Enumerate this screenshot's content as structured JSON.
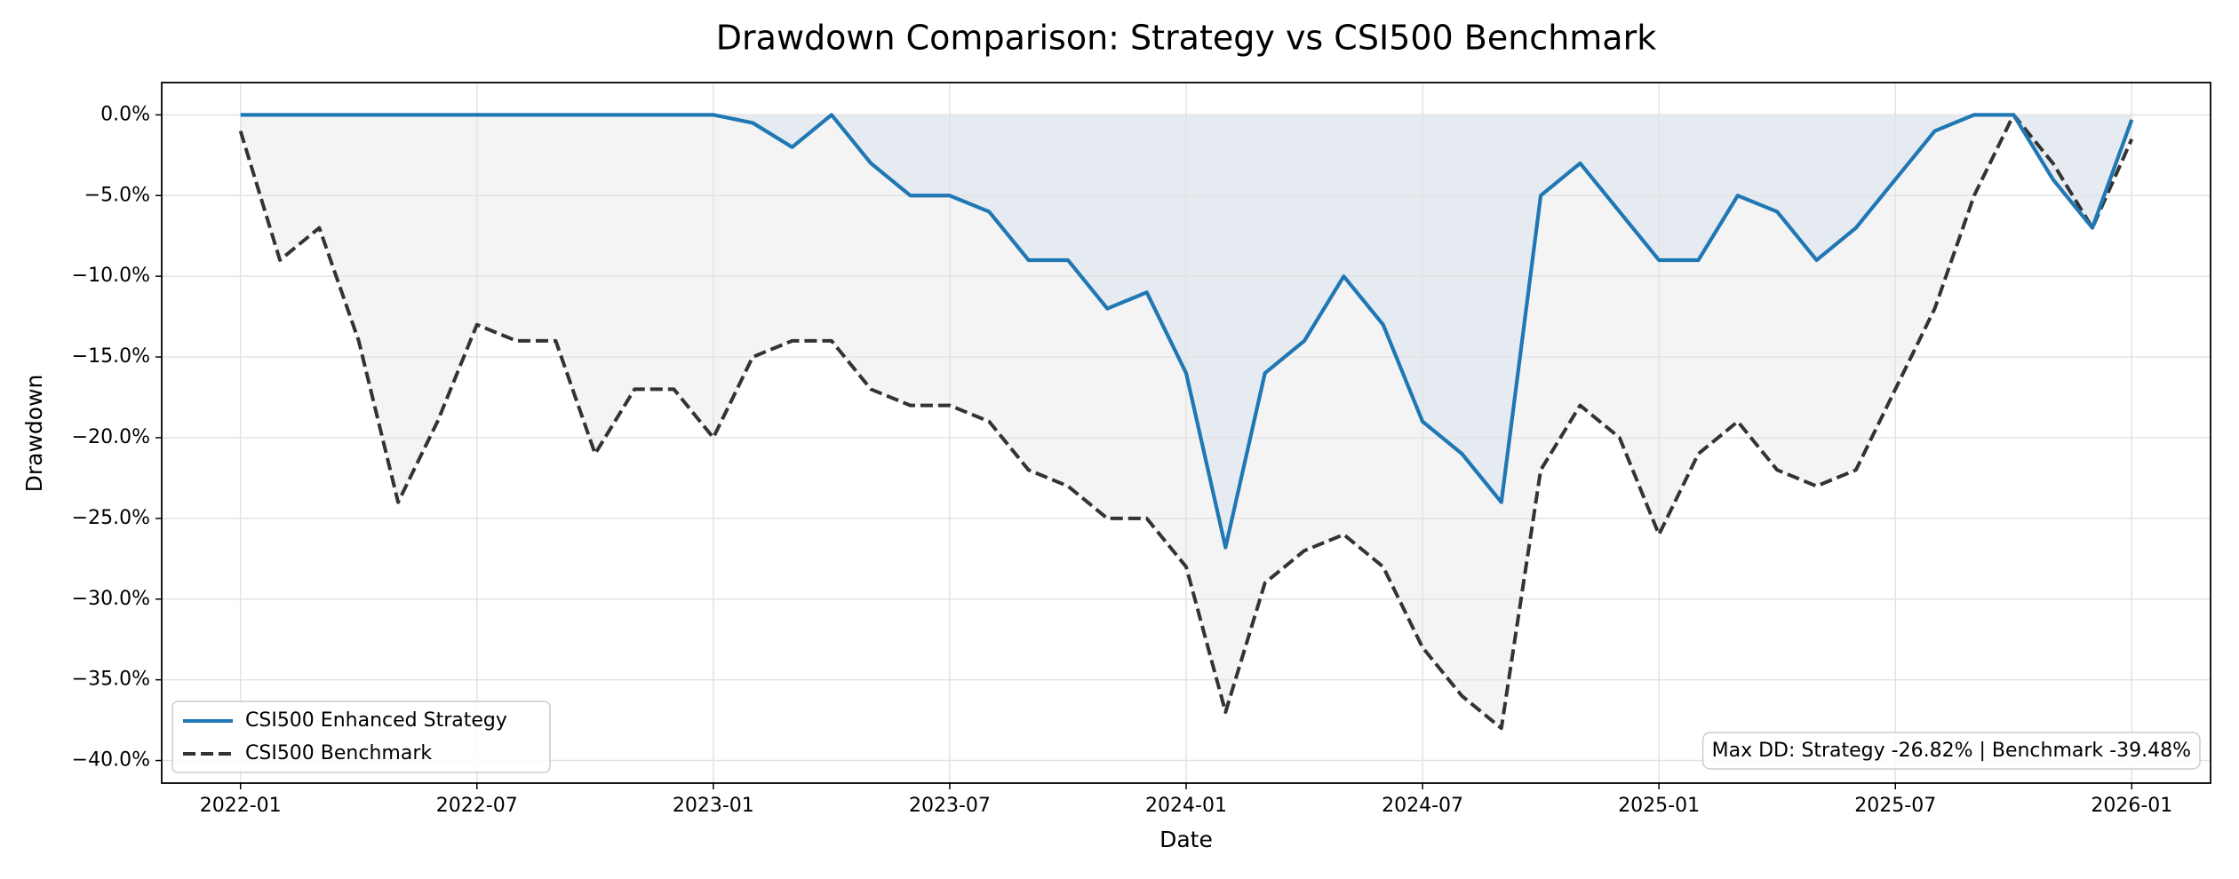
{
  "chart_data": {
    "type": "line",
    "title": "Drawdown Comparison: Strategy vs CSI500 Benchmark",
    "x_label": "Date",
    "y_label": "Drawdown",
    "annotation": "Max DD: Strategy -26.82% | Benchmark -39.48%",
    "x": [
      "2022-01",
      "2022-02",
      "2022-03",
      "2022-04",
      "2022-05",
      "2022-06",
      "2022-07",
      "2022-08",
      "2022-09",
      "2022-10",
      "2022-11",
      "2022-12",
      "2023-01",
      "2023-02",
      "2023-03",
      "2023-04",
      "2023-05",
      "2023-06",
      "2023-07",
      "2023-08",
      "2023-09",
      "2023-10",
      "2023-11",
      "2023-12",
      "2024-01",
      "2024-02",
      "2024-03",
      "2024-04",
      "2024-05",
      "2024-06",
      "2024-07",
      "2024-08",
      "2024-09",
      "2024-10",
      "2024-11",
      "2024-12",
      "2025-01",
      "2025-02",
      "2025-03",
      "2025-04",
      "2025-05",
      "2025-06",
      "2025-07",
      "2025-08",
      "2025-09",
      "2025-10",
      "2025-11",
      "2025-12",
      "2026-01"
    ],
    "series": [
      {
        "name": "CSI500 Enhanced Strategy",
        "color": "#1f77b4",
        "fill_color": "#e6ebf2",
        "dashed": false,
        "values": [
          0,
          0,
          0,
          0,
          0,
          0,
          0,
          0,
          0,
          0,
          0,
          0,
          0,
          -0.5,
          -2,
          0,
          -3,
          -5,
          -5,
          -6,
          -9,
          -9,
          -12,
          -11,
          -16,
          -26.8,
          -16,
          -14,
          -10,
          -13,
          -19,
          -21,
          -24,
          -5,
          -3,
          -6,
          -9,
          -9,
          -5,
          -6,
          -9,
          -7,
          -4,
          -1,
          0,
          0,
          -4,
          -7,
          -0.3
        ]
      },
      {
        "name": "CSI500 Benchmark",
        "color": "#333333",
        "fill_color": "#f4f4f4",
        "dashed": true,
        "values": [
          -1,
          -9,
          -7,
          -14,
          -24,
          -19,
          -13,
          -14,
          -14,
          -21,
          -17,
          -17,
          -20,
          -15,
          -14,
          -14,
          -17,
          -18,
          -18,
          -19,
          -22,
          -23,
          -25,
          -25,
          -28,
          -37,
          -29,
          -27,
          -26,
          -28,
          -33,
          -36,
          -38,
          -22,
          -18,
          -20,
          -26,
          -21,
          -19,
          -22,
          -23,
          -22,
          -17,
          -12,
          -5,
          0,
          -3,
          -7,
          -1.5
        ]
      }
    ],
    "xlim": [
      "2021-11",
      "2026-03"
    ],
    "xticks": [
      "2022-01",
      "2022-07",
      "2023-01",
      "2023-07",
      "2024-01",
      "2024-07",
      "2025-01",
      "2025-07",
      "2026-01"
    ],
    "ylim": [
      -41.4,
      2
    ],
    "yticks": [
      {
        "value": 0,
        "label": "0.0%"
      },
      {
        "value": -5,
        "label": "−5.0%"
      },
      {
        "value": -10,
        "label": "−10.0%"
      },
      {
        "value": -15,
        "label": "−15.0%"
      },
      {
        "value": -20,
        "label": "−20.0%"
      },
      {
        "value": -25,
        "label": "−25.0%"
      },
      {
        "value": -30,
        "label": "−30.0%"
      },
      {
        "value": -35,
        "label": "−35.0%"
      },
      {
        "value": -40,
        "label": "−40.0%"
      }
    ],
    "grid": true,
    "legend": "lower-left"
  }
}
